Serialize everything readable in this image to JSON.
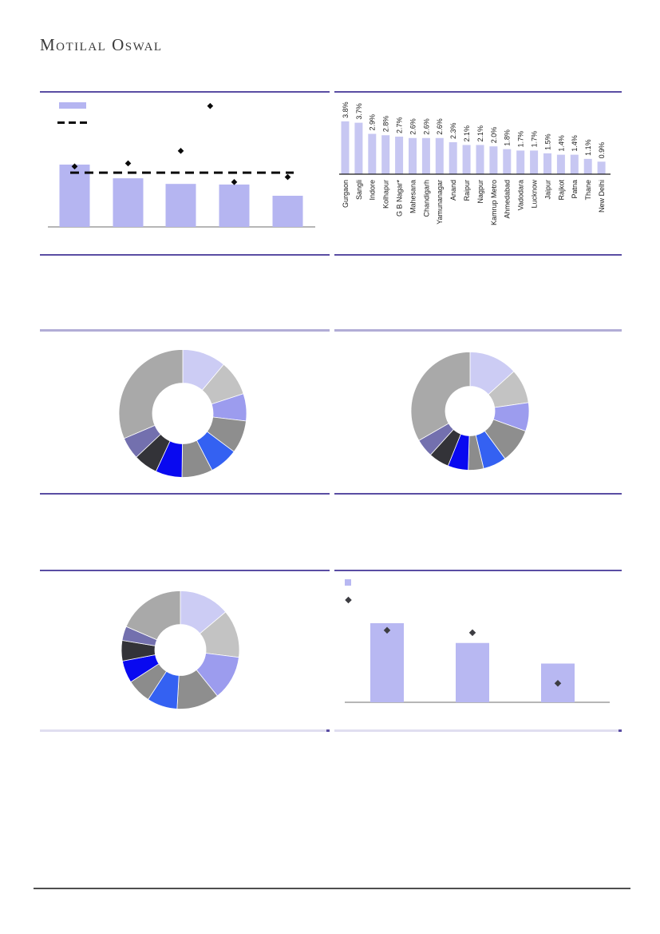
{
  "brand": {
    "name": "Motilal Oswal"
  },
  "colors": {
    "bar_lavender": "#b5b5f1",
    "bar_lavender_light": "#c7c7f2",
    "bar_lavender_bottom": "#b8b8f2",
    "marker_black": "#0a0a0a",
    "marker_charcoal": "#3d3d42",
    "axis_gray": "#8a8a8a",
    "axis_black": "#1a1a1a",
    "rule_dark_purple": "#5a4da3",
    "rule_mid_purple": "#b2add6",
    "rule_light_purple": "#e0def0",
    "label_text": "#1a1a1a",
    "donut_palette": [
      "#ccccf4",
      "#c3c3c3",
      "#9c9cee",
      "#8e8e8e",
      "#3461f2",
      "#8c8c8c",
      "#0909f0",
      "#333338",
      "#7370ae",
      "#a9a9a9"
    ]
  },
  "chart_data": [
    {
      "id": "top-left-bar-scatter",
      "type": "bar",
      "title": "",
      "categories": [
        "",
        "",
        "",
        "",
        ""
      ],
      "series": [
        {
          "name": "bars",
          "type": "bar",
          "values": [
            100,
            78,
            69,
            68,
            50
          ]
        },
        {
          "name": "diamond-markers",
          "type": "scatter",
          "values": [
            97,
            102,
            122,
            72,
            80
          ]
        },
        {
          "name": "extra-diamond",
          "type": "scatter",
          "points": [
            {
              "x": 2.55,
              "value": 194
            }
          ]
        },
        {
          "name": "dashed-benchmark-line",
          "type": "line",
          "value": 87
        }
      ],
      "ylim": [
        0,
        217
      ],
      "value_axis_visible": false,
      "legend_position": "top-left",
      "legend": [
        {
          "swatch": "bar",
          "label": ""
        },
        {
          "swatch": "dashed-line",
          "label": ""
        }
      ]
    },
    {
      "id": "top-right-city-bars",
      "type": "bar",
      "title": "",
      "categories": [
        "Gurgaon",
        "Sangli",
        "Indore",
        "Kolhapur",
        "G B Nagar*",
        "Mahesana",
        "Chandigarh",
        "Yamunanagar",
        "Anand",
        "Raipur",
        "Nagpur",
        "Kamrup Metro",
        "Ahmedabad",
        "Vadodara",
        "Lucknow",
        "Jaipur",
        "Rajkot",
        "Patna",
        "Thane",
        "New Delhi"
      ],
      "values": [
        3.8,
        3.7,
        2.9,
        2.8,
        2.7,
        2.6,
        2.6,
        2.6,
        2.3,
        2.1,
        2.1,
        2.0,
        1.8,
        1.7,
        1.7,
        1.5,
        1.4,
        1.4,
        1.1,
        0.9
      ],
      "data_labels": [
        "3.8%",
        "3.7%",
        "2.9%",
        "2.8%",
        "2.7%",
        "2.6%",
        "2.6%",
        "2.6%",
        "2.3%",
        "2.1%",
        "2.1%",
        "2.0%",
        "1.8%",
        "1.7%",
        "1.7%",
        "1.5%",
        "1.4%",
        "1.4%",
        "1.1%",
        "0.9%"
      ],
      "ylim": [
        0,
        6
      ],
      "label_rotation": -90,
      "grid": false
    },
    {
      "id": "mid-left-donut",
      "type": "pie",
      "donut": true,
      "title": "",
      "values": [
        11.1,
        8.9,
        6.9,
        8.3,
        7.2,
        7.8,
        6.7,
        6.1,
        5.6,
        31.4
      ],
      "start_angle_deg": 0,
      "palette_ref": "donut_palette"
    },
    {
      "id": "mid-right-donut",
      "type": "pie",
      "donut": true,
      "title": "",
      "values": [
        13.3,
        9.4,
        7.8,
        9.4,
        6.4,
        4.2,
        5.6,
        5.6,
        5.0,
        33.3
      ],
      "start_angle_deg": 0,
      "palette_ref": "donut_palette"
    },
    {
      "id": "bottom-left-donut",
      "type": "pie",
      "donut": true,
      "title": "",
      "values": [
        13.9,
        13.1,
        12.2,
        11.7,
        8.3,
        6.7,
        6.1,
        5.6,
        3.9,
        18.5
      ],
      "start_angle_deg": 0,
      "palette_ref": "donut_palette"
    },
    {
      "id": "bottom-right-bar-scatter",
      "type": "bar",
      "title": "",
      "categories": [
        "",
        "",
        ""
      ],
      "series": [
        {
          "name": "bars",
          "type": "bar",
          "values": [
            100,
            75,
            49
          ]
        },
        {
          "name": "diamond-markers",
          "type": "scatter",
          "values": [
            91,
            88,
            24
          ]
        }
      ],
      "ylim": [
        0,
        167
      ],
      "value_axis_visible": false,
      "legend_position": "top-left",
      "legend": [
        {
          "swatch": "bar",
          "label": ""
        },
        {
          "swatch": "diamond",
          "label": ""
        }
      ]
    }
  ]
}
